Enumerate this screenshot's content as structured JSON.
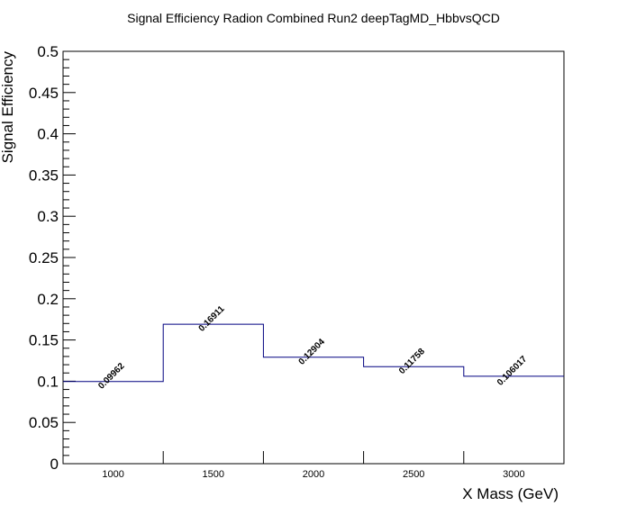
{
  "chart_data": {
    "type": "line",
    "title": "Signal Efficiency Radion Combined Run2 deepTagMD_HbbvsQCD",
    "xlabel": "X Mass (GeV)",
    "ylabel": "Signal Efficiency",
    "xlim": [
      750,
      3250
    ],
    "ylim": [
      0,
      0.5
    ],
    "x_ticks": [
      "1000",
      "1500",
      "2000",
      "2500",
      "3000"
    ],
    "y_ticks": [
      "0",
      "0.05",
      "0.1",
      "0.15",
      "0.2",
      "0.25",
      "0.3",
      "0.35",
      "0.4",
      "0.45",
      "0.5"
    ],
    "bin_edges": [
      750,
      1250,
      1750,
      2250,
      2750,
      3250
    ],
    "values": [
      0.09962,
      0.16911,
      0.12904,
      0.11758,
      0.106017
    ],
    "value_labels": [
      "0.09962",
      "0.16911",
      "0.12904",
      "0.11758",
      "0.106017"
    ],
    "line_color": "#000080"
  }
}
